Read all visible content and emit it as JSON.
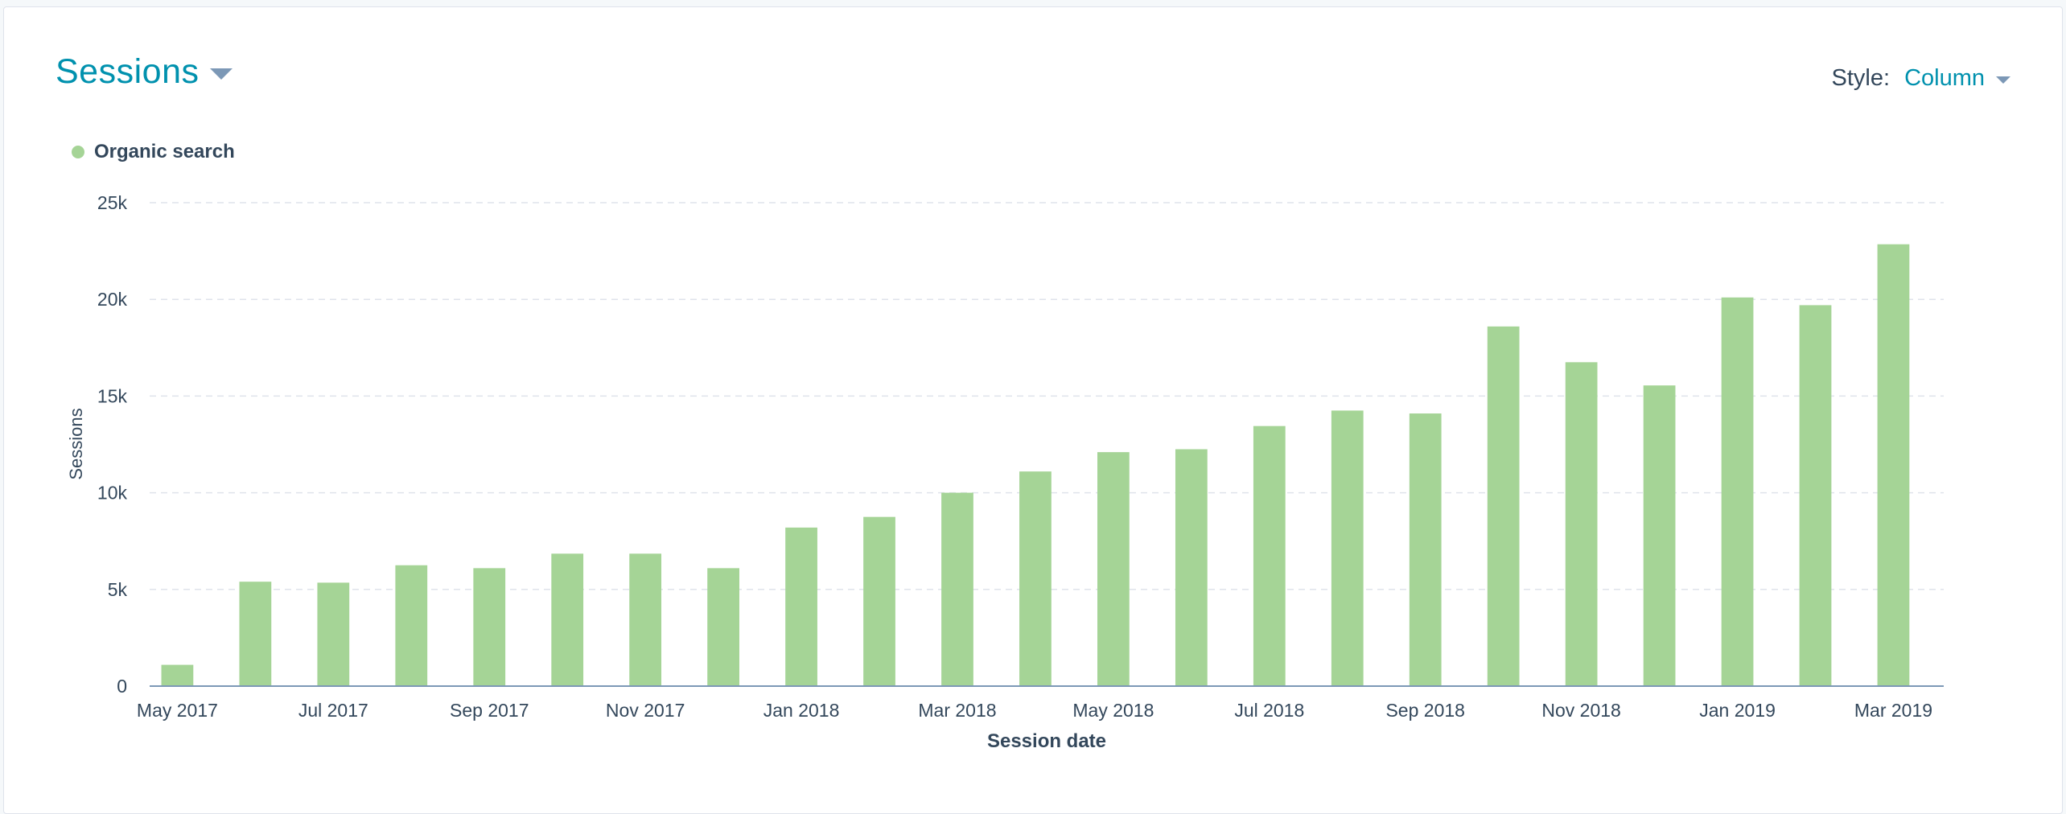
{
  "header": {
    "title": "Sessions",
    "style_label": "Style:",
    "style_value": "Column"
  },
  "colors": {
    "accent": "#0091ae",
    "bar": "#a5d496",
    "text": "#33475b",
    "grid": "#dfe3eb",
    "baseline": "#7c98b6"
  },
  "chart_data": {
    "type": "bar",
    "xlabel": "Session date",
    "ylabel": "Sessions",
    "ylim": [
      0,
      25000
    ],
    "y_ticks": [
      {
        "value": 0,
        "label": "0"
      },
      {
        "value": 5000,
        "label": "5k"
      },
      {
        "value": 10000,
        "label": "10k"
      },
      {
        "value": 15000,
        "label": "15k"
      },
      {
        "value": 20000,
        "label": "20k"
      },
      {
        "value": 25000,
        "label": "25k"
      }
    ],
    "grid": true,
    "legend": "top-left",
    "categories": [
      "May 2017",
      "Jun 2017",
      "Jul 2017",
      "Aug 2017",
      "Sep 2017",
      "Oct 2017",
      "Nov 2017",
      "Dec 2017",
      "Jan 2018",
      "Feb 2018",
      "Mar 2018",
      "Apr 2018",
      "May 2018",
      "Jun 2018",
      "Jul 2018",
      "Aug 2018",
      "Sep 2018",
      "Oct 2018",
      "Nov 2018",
      "Dec 2018",
      "Jan 2019",
      "Feb 2019",
      "Mar 2019"
    ],
    "x_tick_labels": [
      "May 2017",
      "Jul 2017",
      "Sep 2017",
      "Nov 2017",
      "Jan 2018",
      "Mar 2018",
      "May 2018",
      "Jul 2018",
      "Sep 2018",
      "Nov 2018",
      "Jan 2019",
      "Mar 2019"
    ],
    "series": [
      {
        "name": "Organic search",
        "values": [
          1100,
          5400,
          5350,
          6250,
          6100,
          6850,
          6850,
          6100,
          8200,
          8750,
          10000,
          11100,
          12100,
          12250,
          13450,
          14250,
          14100,
          18600,
          16750,
          15550,
          20100,
          19700,
          22850
        ]
      }
    ]
  }
}
